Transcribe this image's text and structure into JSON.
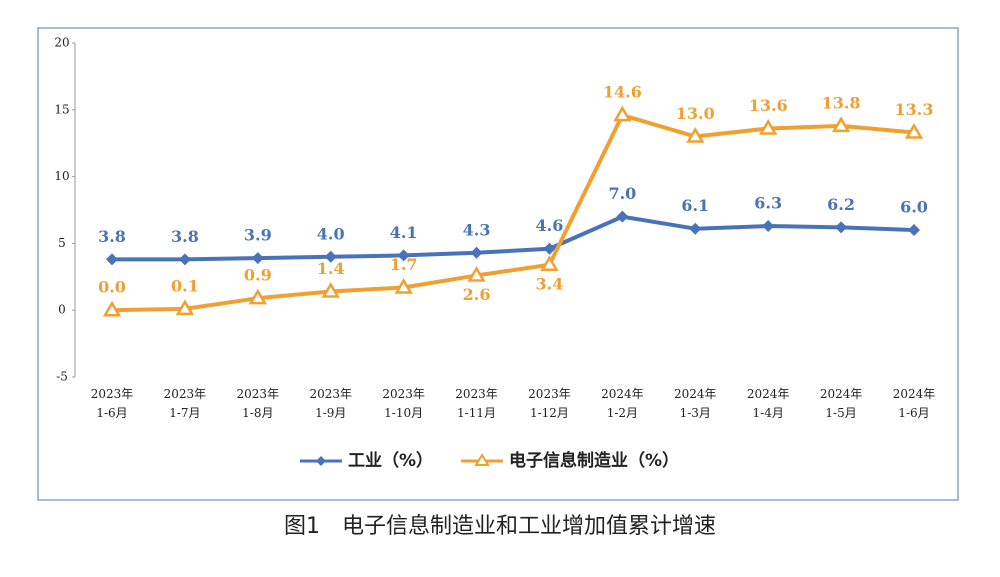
{
  "chart_data": {
    "type": "line",
    "title": "图1　电子信息制造业和工业增加值累计增速",
    "categories": [
      [
        "2023年",
        "1-6月"
      ],
      [
        "2023年",
        "1-7月"
      ],
      [
        "2023年",
        "1-8月"
      ],
      [
        "2023年",
        "1-9月"
      ],
      [
        "2023年",
        "1-10月"
      ],
      [
        "2023年",
        "1-11月"
      ],
      [
        "2023年",
        "1-12月"
      ],
      [
        "2024年",
        "1-2月"
      ],
      [
        "2024年",
        "1-3月"
      ],
      [
        "2024年",
        "1-4月"
      ],
      [
        "2024年",
        "1-5月"
      ],
      [
        "2024年",
        "1-6月"
      ]
    ],
    "series": [
      {
        "name": "工业（%）",
        "color": "#4a72b8",
        "marker": "diamond",
        "values": [
          3.8,
          3.8,
          3.9,
          4.0,
          4.1,
          4.3,
          4.6,
          7.0,
          6.1,
          6.3,
          6.2,
          6.0
        ],
        "value_labels": [
          "3.8",
          "3.8",
          "3.9",
          "4.0",
          "4.1",
          "4.3",
          "4.6",
          "7.0",
          "6.1",
          "6.3",
          "6.2",
          "6.0"
        ]
      },
      {
        "name": "电子信息制造业（%）",
        "color": "#f0a030",
        "marker": "triangle",
        "values": [
          0.0,
          0.1,
          0.9,
          1.4,
          1.7,
          2.6,
          3.4,
          14.6,
          13.0,
          13.6,
          13.8,
          13.3
        ],
        "value_labels": [
          "0.0",
          "0.1",
          "0.9",
          "1.4",
          "1.7",
          "2.6",
          "3.4",
          "14.6",
          "13.0",
          "13.6",
          "13.8",
          "13.3"
        ]
      }
    ],
    "ylim": [
      -5,
      20
    ],
    "yticks": [
      -5,
      0,
      5,
      10,
      15,
      20
    ],
    "grid": false,
    "legend": "bottom"
  }
}
